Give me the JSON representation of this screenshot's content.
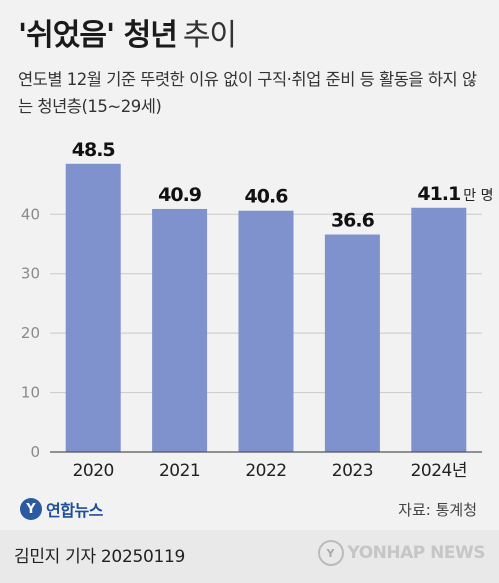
{
  "header": {
    "title_bold": "'쉬었음' 청년",
    "title_light": "추이",
    "subtitle": "연도별 12월 기준 뚜렷한 이유 없이 구직·취업 준비 등 활동을 하지 않는 청년층(15~29세)"
  },
  "chart_data": {
    "type": "bar",
    "categories": [
      "2020",
      "2021",
      "2022",
      "2023",
      "2024년"
    ],
    "values": [
      48.5,
      40.9,
      40.6,
      36.6,
      41.1
    ],
    "value_labels": [
      "48.5",
      "40.9",
      "40.6",
      "36.6",
      "41.1"
    ],
    "unit": "만 명",
    "ylim": [
      0,
      52
    ],
    "yticks": [
      "0",
      "10",
      "20",
      "30",
      "40"
    ],
    "bar_color": "#7f92cd",
    "grid": true
  },
  "branding": {
    "logo_glyph": "Y",
    "logo_text": "연합뉴스"
  },
  "source": "자료: 통계청",
  "footer": {
    "author": "김민지 기자  20250119",
    "agency": "YONHAP NEWS",
    "agency_glyph": "Y"
  }
}
